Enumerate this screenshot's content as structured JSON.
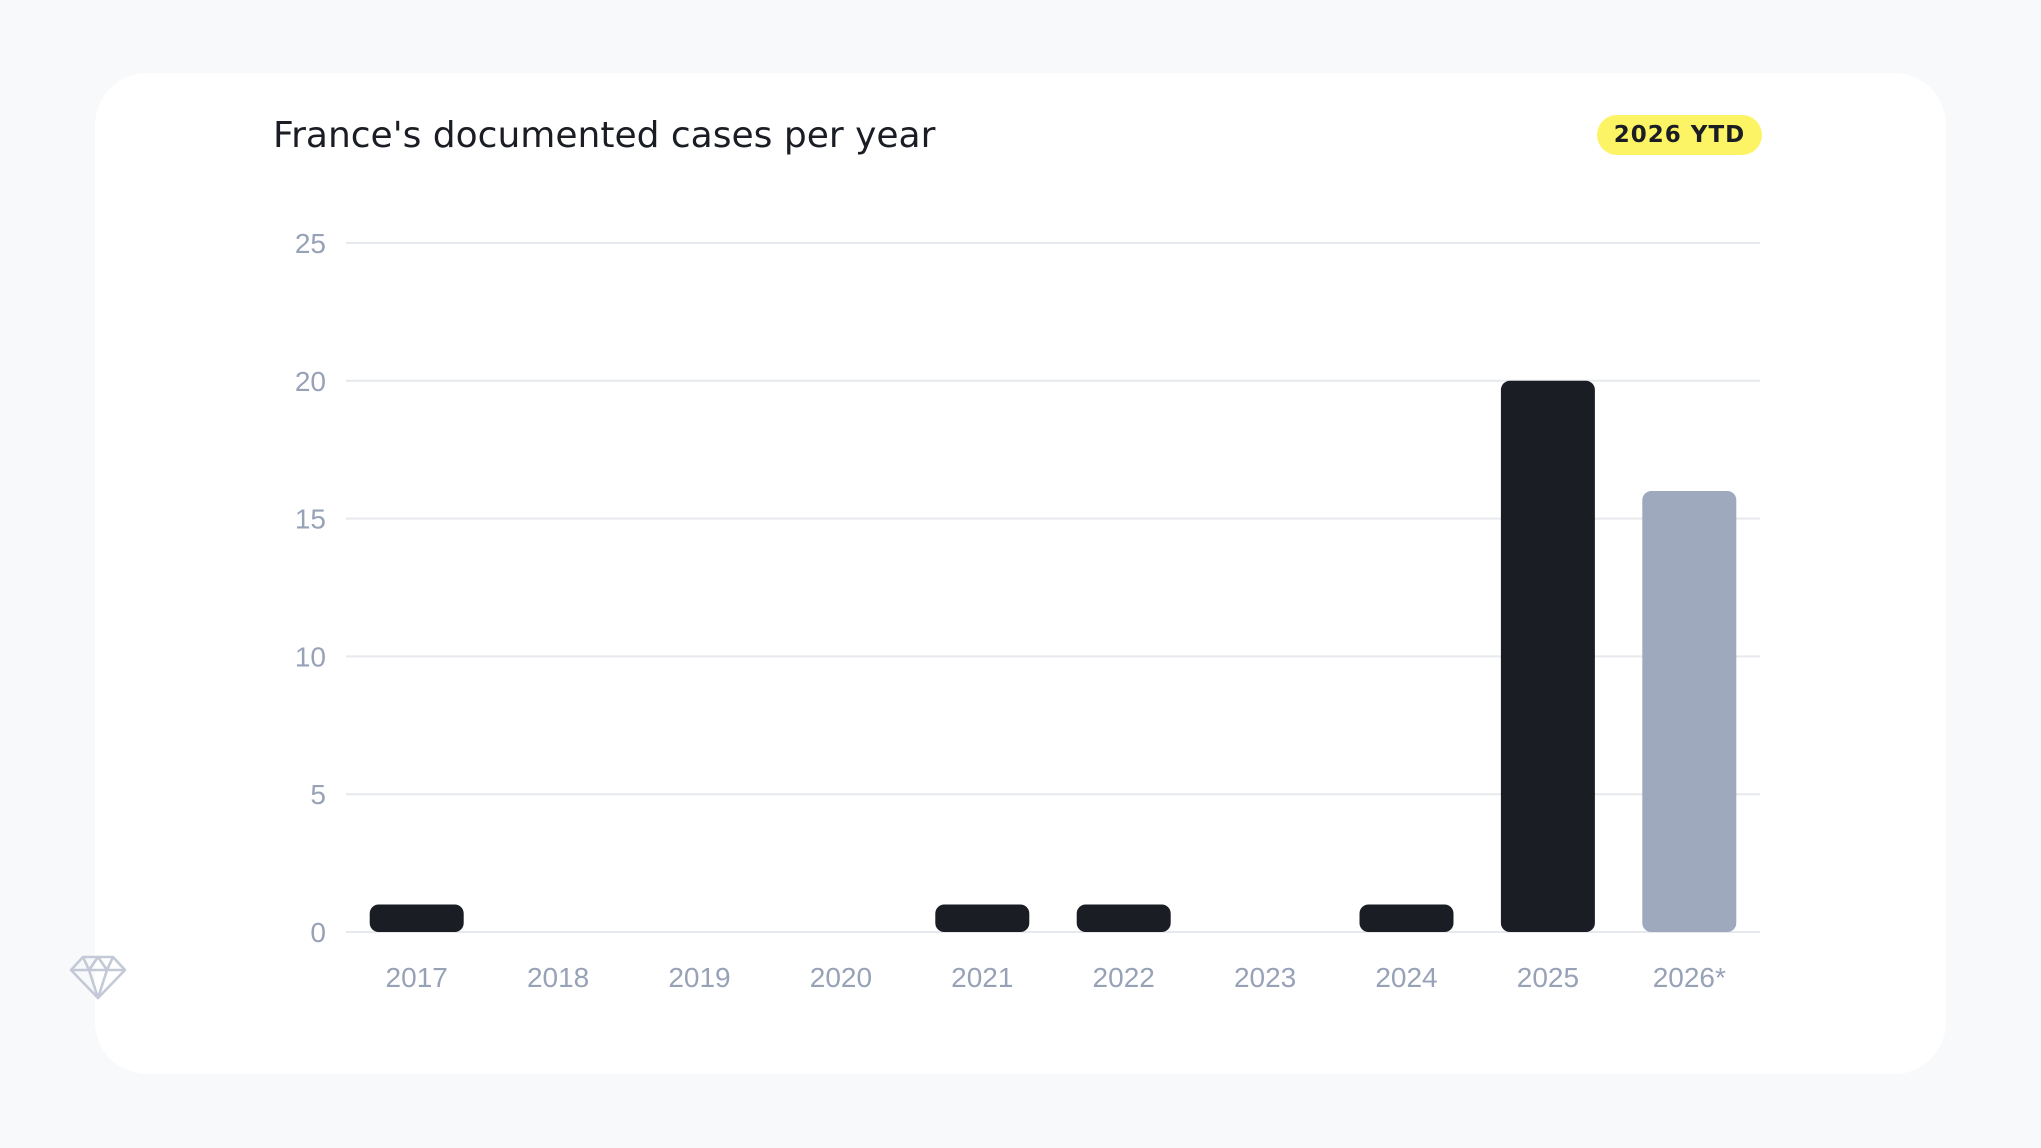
{
  "header": {
    "title": "France's documented cases per year",
    "badge": "2026 YTD"
  },
  "colors": {
    "bar_primary": "#1a1d23",
    "bar_partial": "#9fa9bd",
    "badge_background": "#fcf365",
    "grid": "#e6e9ee",
    "tick_text": "#98a2b7"
  },
  "chart_data": {
    "type": "bar",
    "title": "France's documented cases per year",
    "xlabel": "",
    "ylabel": "",
    "categories": [
      "2017",
      "2018",
      "2019",
      "2020",
      "2021",
      "2022",
      "2023",
      "2024",
      "2025",
      "2026*"
    ],
    "values": [
      1,
      0,
      0,
      0,
      1,
      1,
      0,
      1,
      20,
      16
    ],
    "highlight": [
      false,
      false,
      false,
      false,
      false,
      false,
      false,
      false,
      false,
      true
    ],
    "ylim": [
      0,
      25
    ],
    "yticks": [
      0,
      5,
      10,
      15,
      20,
      25
    ],
    "grid": true,
    "legend": "none"
  },
  "logo_icon": "diamond-icon"
}
